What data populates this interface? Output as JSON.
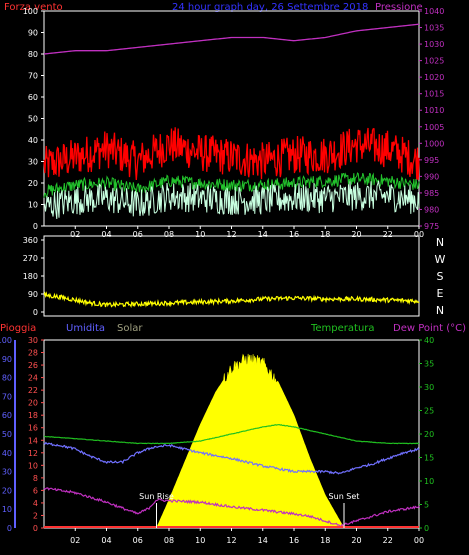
{
  "title": "24 hour graph day, 26 Settembre 2018",
  "colors": {
    "background": "#000000",
    "frame": "#ffffff",
    "wind_peak": "#ff0000",
    "wind_avg": "#22c22c",
    "wind_low": "#c8ffe0",
    "pressure": "#c030c0",
    "direction": "#ffff00",
    "rain": "#ff3333",
    "humidity": "#7070ff",
    "solar": "#ffff00",
    "temperature": "#20c020",
    "dewpoint": "#c030c0",
    "rain_axis": "#ff5050",
    "humidity_axis": "#6060ff",
    "temp_axis": "#20c020"
  },
  "chart_data": [
    {
      "type": "line",
      "name": "wind_pressure",
      "title": "24 hour graph day, 26 Settembre 2018",
      "left_label": "Forza vento",
      "right_label": "Pressione",
      "x_tick_labels": [
        "02",
        "04",
        "06",
        "08",
        "10",
        "12",
        "14",
        "16",
        "18",
        "20",
        "22",
        "00"
      ],
      "left_ticks": [
        "0",
        "10",
        "20",
        "30",
        "40",
        "50",
        "60",
        "70",
        "80",
        "90",
        "100"
      ],
      "right_ticks": [
        "975",
        "980",
        "985",
        "990",
        "995",
        "1000",
        "1005",
        "1010",
        "1015",
        "1020",
        "1025",
        "1030",
        "1035",
        "1040"
      ],
      "left_range": [
        0,
        100
      ],
      "right_range": [
        975,
        1040
      ],
      "x_range_hours": [
        0,
        24
      ],
      "series": [
        {
          "role": "wind_peak",
          "x": [
            0,
            2,
            4,
            6,
            8,
            10,
            12,
            14,
            16,
            18,
            20,
            22,
            24
          ],
          "values": [
            28,
            32,
            36,
            30,
            38,
            34,
            32,
            30,
            33,
            33,
            38,
            36,
            30
          ]
        },
        {
          "role": "wind_avg",
          "x": [
            0,
            2,
            4,
            6,
            8,
            10,
            12,
            14,
            16,
            18,
            20,
            22,
            24
          ],
          "values": [
            16,
            19,
            20,
            17,
            21,
            20,
            19,
            19,
            20,
            21,
            22,
            21,
            19
          ]
        },
        {
          "role": "wind_low",
          "x": [
            0,
            2,
            4,
            6,
            8,
            10,
            12,
            14,
            16,
            18,
            20,
            22,
            24
          ],
          "values": [
            9,
            12,
            13,
            10,
            14,
            13,
            12,
            12,
            13,
            13,
            14,
            14,
            12
          ]
        },
        {
          "role": "pressure",
          "x": [
            0,
            2,
            4,
            6,
            8,
            10,
            12,
            14,
            16,
            18,
            20,
            22,
            24
          ],
          "values": [
            1027,
            1028,
            1028,
            1029,
            1030,
            1031,
            1032,
            1032,
            1031,
            1032,
            1034,
            1035,
            1036
          ]
        }
      ]
    },
    {
      "type": "line",
      "name": "wind_direction",
      "left_ticks": [
        "0",
        "90",
        "180",
        "270",
        "360"
      ],
      "right_labels": [
        "N",
        "W",
        "S",
        "E",
        "N"
      ],
      "y_range": [
        0,
        360
      ],
      "x_range_hours": [
        0,
        24
      ],
      "series": [
        {
          "role": "direction",
          "x": [
            0,
            1,
            2,
            3,
            4,
            6,
            8,
            10,
            12,
            14,
            16,
            18,
            20,
            22,
            24
          ],
          "values": [
            85,
            75,
            60,
            45,
            35,
            40,
            45,
            50,
            55,
            65,
            70,
            65,
            65,
            60,
            55
          ]
        }
      ]
    },
    {
      "type": "line",
      "name": "rain_humidity_solar_temperature",
      "labels": {
        "rain": "Pioggia",
        "humidity": "Umidita",
        "solar": "Solar",
        "temperature": "Temperatura",
        "dewpoint": "Dew Point (°C)",
        "sunrise": "Sun Rise",
        "sunset": "Sun Set"
      },
      "x_tick_labels": [
        "02",
        "04",
        "06",
        "08",
        "10",
        "12",
        "14",
        "16",
        "18",
        "20",
        "22",
        "00"
      ],
      "humidity_ticks": [
        "0",
        "10",
        "20",
        "30",
        "40",
        "50",
        "60",
        "70",
        "80",
        "90",
        "100"
      ],
      "rain_ticks": [
        "0",
        "2",
        "4",
        "6",
        "8",
        "10",
        "12",
        "14",
        "16",
        "18",
        "20",
        "22",
        "24",
        "26",
        "28",
        "30"
      ],
      "temperature_ticks": [
        "0",
        "5",
        "10",
        "15",
        "20",
        "25",
        "30",
        "35",
        "40"
      ],
      "humidity_range": [
        0,
        100
      ],
      "rain_range": [
        0,
        30
      ],
      "temperature_range": [
        0,
        40
      ],
      "sunrise_hour": 7.2,
      "sunset_hour": 19.2,
      "series": [
        {
          "role": "temperature",
          "x": [
            0,
            2,
            4,
            6,
            8,
            10,
            12,
            14,
            15,
            16,
            18,
            20,
            22,
            24
          ],
          "values": [
            19.5,
            19,
            18.5,
            18,
            18,
            18.5,
            20,
            21.5,
            22,
            21.5,
            20,
            18.5,
            18,
            18
          ]
        },
        {
          "role": "humidity",
          "x": [
            0,
            1,
            2,
            3,
            4,
            5,
            6,
            7,
            8,
            10,
            12,
            14,
            16,
            18,
            19,
            20,
            21,
            22,
            23,
            24
          ],
          "values": [
            45,
            44,
            42,
            38,
            35,
            35,
            40,
            43,
            44,
            40,
            37,
            33,
            30,
            30,
            29,
            32,
            34,
            37,
            40,
            42
          ]
        },
        {
          "role": "dewpoint",
          "x": [
            0,
            2,
            4,
            6,
            6.7,
            7.2,
            8,
            10,
            12,
            14,
            16,
            17,
            18,
            19,
            20,
            22,
            24
          ],
          "values": [
            8.5,
            7.5,
            5.5,
            3,
            4.2,
            6,
            5.8,
            5.5,
            4.5,
            3.8,
            3,
            2.5,
            1.5,
            0.5,
            1.5,
            3.5,
            4.5
          ]
        },
        {
          "role": "solar",
          "x": [
            7.2,
            8,
            9,
            10,
            11,
            12,
            13,
            14,
            15,
            16,
            17,
            18,
            19.2
          ],
          "values": [
            0,
            6,
            14,
            22,
            29,
            34,
            36,
            35,
            31,
            24,
            15,
            7,
            0
          ]
        },
        {
          "role": "rain",
          "x": [
            0,
            24
          ],
          "values": [
            0,
            0
          ]
        }
      ]
    }
  ]
}
